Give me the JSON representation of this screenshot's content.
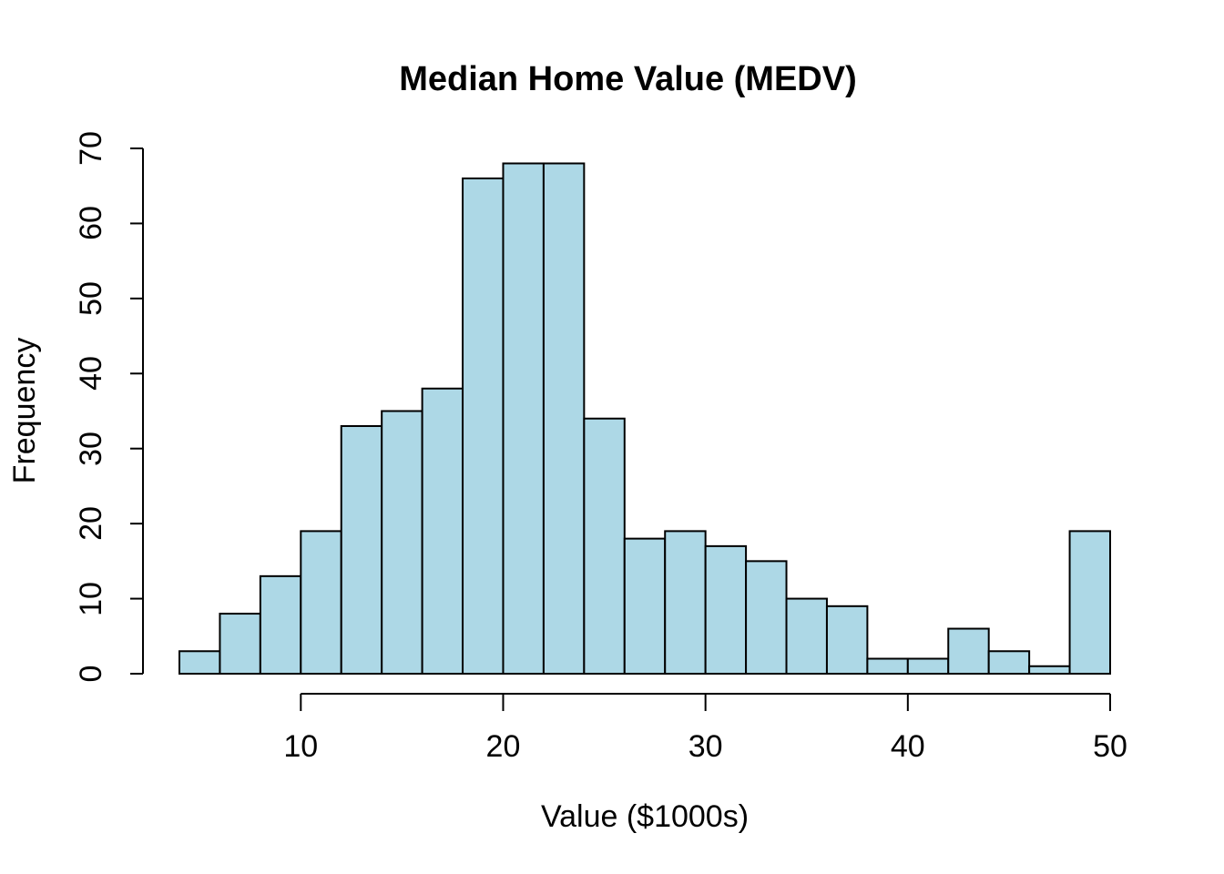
{
  "page": {
    "background_color": "#ffffff",
    "text_color": "#000000"
  },
  "chart_data": {
    "type": "bar",
    "subtype": "histogram",
    "title": "Median Home Value (MEDV)",
    "xlabel": "Value ($1000s)",
    "ylabel": "Frequency",
    "bin_edges": [
      4,
      6,
      8,
      10,
      12,
      14,
      16,
      18,
      20,
      22,
      24,
      26,
      28,
      30,
      32,
      34,
      36,
      38,
      40,
      42,
      44,
      46,
      48,
      50
    ],
    "counts": [
      3,
      8,
      13,
      19,
      33,
      35,
      38,
      66,
      68,
      68,
      34,
      18,
      19,
      17,
      15,
      10,
      9,
      2,
      2,
      6,
      3,
      1,
      19
    ],
    "x_ticks": [
      10,
      20,
      30,
      40,
      50
    ],
    "y_ticks": [
      0,
      10,
      20,
      30,
      40,
      50,
      60,
      70
    ],
    "xlim": [
      4,
      50
    ],
    "ylim": [
      0,
      70
    ],
    "grid": false,
    "legend": null,
    "bar_fill": "#ADD8E6",
    "bar_stroke": "#000000",
    "axis_color": "#000000"
  }
}
